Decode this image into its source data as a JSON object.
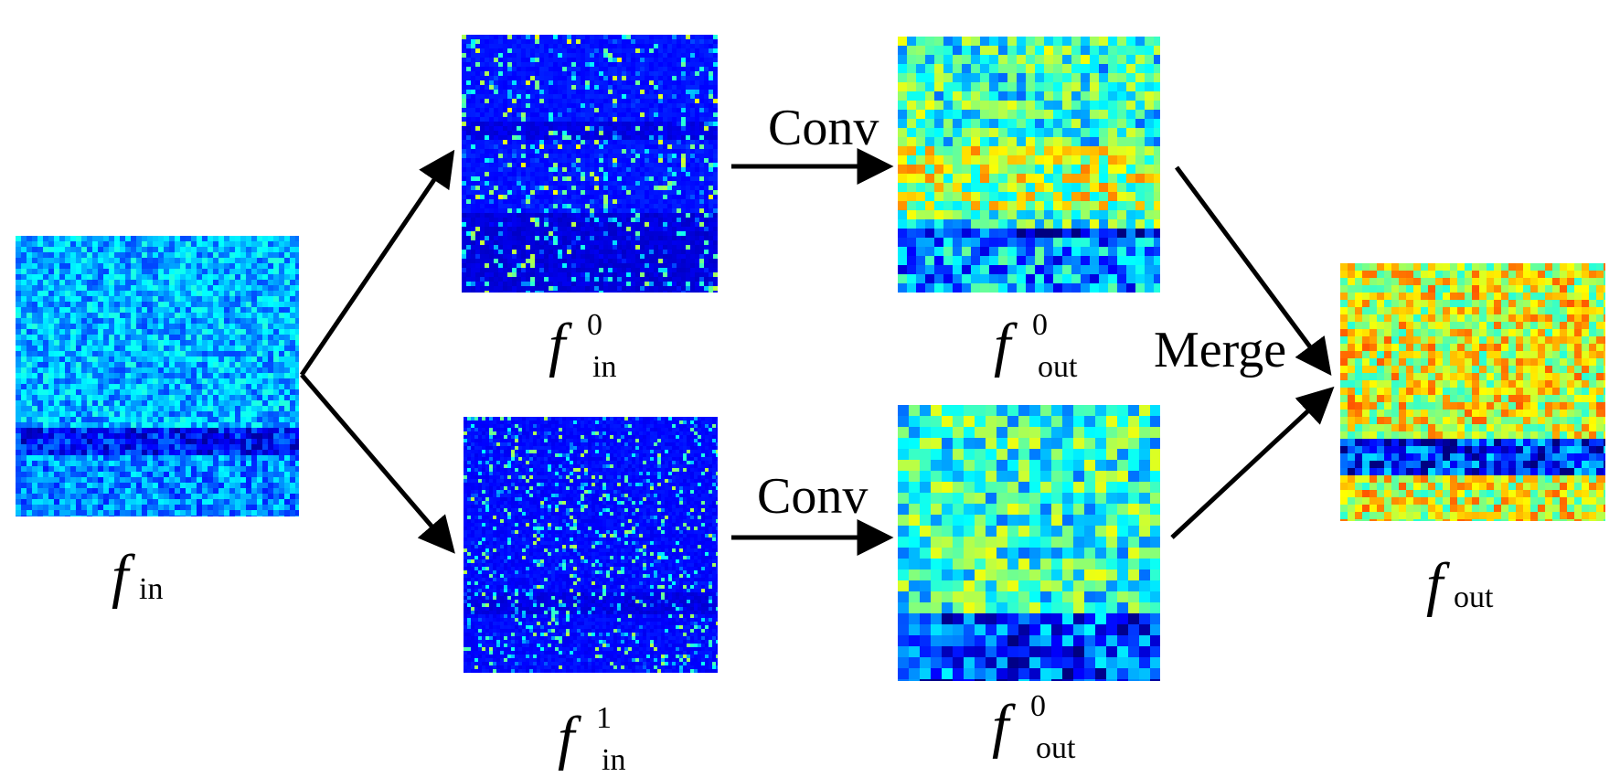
{
  "operations": {
    "conv_top": "Conv",
    "conv_bottom": "Conv",
    "merge": "Merge"
  },
  "labels": {
    "input": {
      "base": "f",
      "sub": "in"
    },
    "split_high": {
      "base": "f",
      "sup": "0",
      "sub": "in"
    },
    "split_low": {
      "base": "f",
      "sup": "1",
      "sub": "in"
    },
    "conv_high_out": {
      "base": "f",
      "sup": "0",
      "sub": "out"
    },
    "conv_low_out": {
      "base": "f",
      "sup": "0",
      "sub": "out"
    },
    "output": {
      "base": "f",
      "sub": "out"
    }
  },
  "colors": {
    "arrow": "#000000",
    "heatmap_low": "#00108f",
    "heatmap_mid": "#2a9df4",
    "heatmap_high": "#e0281e"
  }
}
